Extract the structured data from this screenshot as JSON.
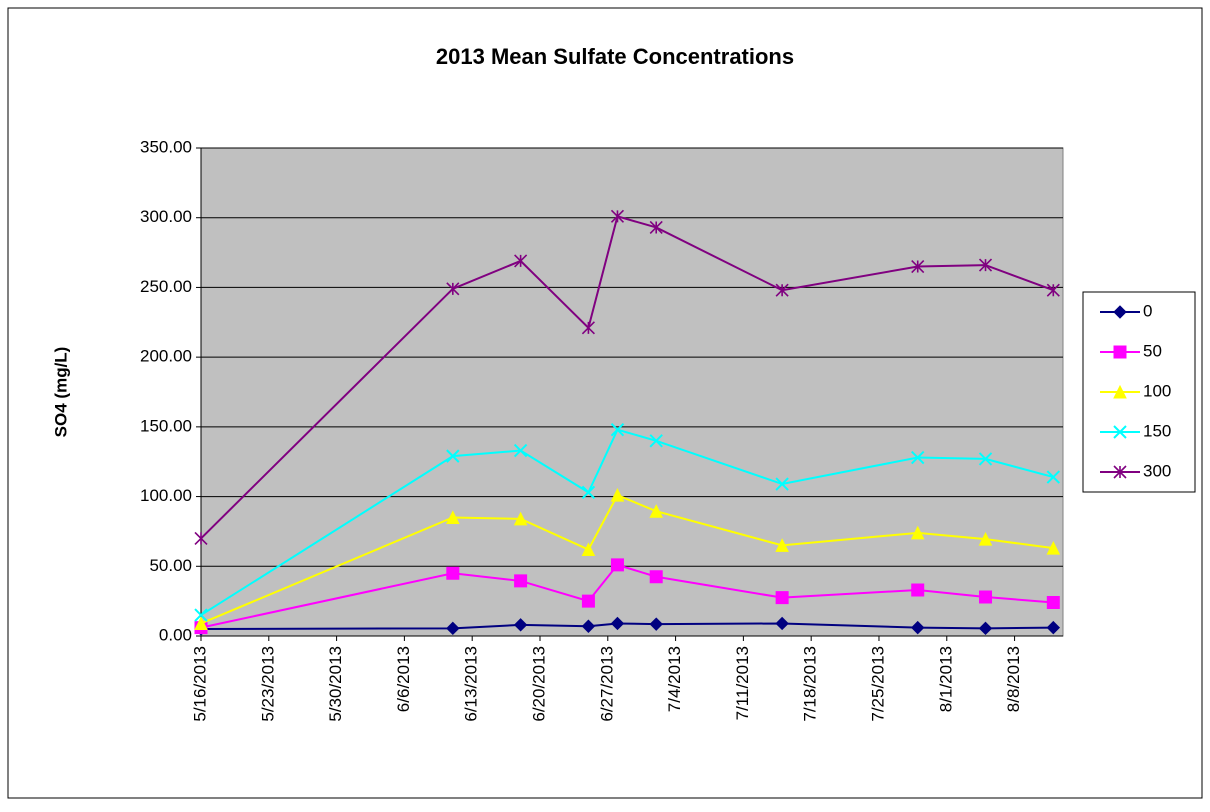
{
  "chart_data": {
    "type": "line",
    "title": "2013 Mean Sulfate Concentrations",
    "y_label": "SO4 (mg/L)",
    "x": [
      "2013-05-16",
      "2013-06-11",
      "2013-06-18",
      "2013-06-25",
      "2013-06-28",
      "2013-07-02",
      "2013-07-15",
      "2013-07-29",
      "2013-08-05",
      "2013-08-12"
    ],
    "xlim": [
      "2013-05-16",
      "2013-08-13"
    ],
    "xticks": [
      {
        "value": "2013-05-16",
        "label": "5/16/2013"
      },
      {
        "value": "2013-05-23",
        "label": "5/23/2013"
      },
      {
        "value": "2013-05-30",
        "label": "5/30/2013"
      },
      {
        "value": "2013-06-06",
        "label": "6/6/2013"
      },
      {
        "value": "2013-06-13",
        "label": "6/13/2013"
      },
      {
        "value": "2013-06-20",
        "label": "6/20/2013"
      },
      {
        "value": "2013-06-27",
        "label": "6/27/2013"
      },
      {
        "value": "2013-07-04",
        "label": "7/4/2013"
      },
      {
        "value": "2013-07-11",
        "label": "7/11/2013"
      },
      {
        "value": "2013-07-18",
        "label": "7/18/2013"
      },
      {
        "value": "2013-07-25",
        "label": "7/25/2013"
      },
      {
        "value": "2013-08-01",
        "label": "8/1/2013"
      },
      {
        "value": "2013-08-08",
        "label": "8/8/2013"
      }
    ],
    "ylim": [
      0,
      350
    ],
    "yticks": [
      {
        "value": 0,
        "label": "0.00"
      },
      {
        "value": 50,
        "label": "50.00"
      },
      {
        "value": 100,
        "label": "100.00"
      },
      {
        "value": 150,
        "label": "150.00"
      },
      {
        "value": 200,
        "label": "200.00"
      },
      {
        "value": 250,
        "label": "250.00"
      },
      {
        "value": 300,
        "label": "300.00"
      },
      {
        "value": 350,
        "label": "350.00"
      }
    ],
    "grid": true,
    "legend": "right",
    "background": "#c0c0c0",
    "series": [
      {
        "name": "0",
        "color": "#000080",
        "marker": "diamond",
        "values": [
          5,
          5.5,
          8,
          7,
          9,
          8.5,
          9,
          6,
          5.5,
          6
        ]
      },
      {
        "name": "50",
        "color": "#ff00ff",
        "marker": "square",
        "values": [
          6,
          45,
          39.5,
          25,
          51,
          42.5,
          27.5,
          33,
          28,
          24
        ]
      },
      {
        "name": "100",
        "color": "#ffff00",
        "marker": "triangle",
        "values": [
          9,
          85,
          84,
          62,
          101,
          89.5,
          65,
          74,
          69.5,
          63
        ]
      },
      {
        "name": "150",
        "color": "#00ffff",
        "marker": "x",
        "values": [
          15,
          129,
          133,
          103,
          148,
          140,
          109,
          128,
          127,
          114
        ]
      },
      {
        "name": "300",
        "color": "#800080",
        "marker": "star",
        "values": [
          70,
          249,
          269,
          221,
          301,
          293,
          248,
          265,
          266,
          248
        ]
      }
    ]
  }
}
